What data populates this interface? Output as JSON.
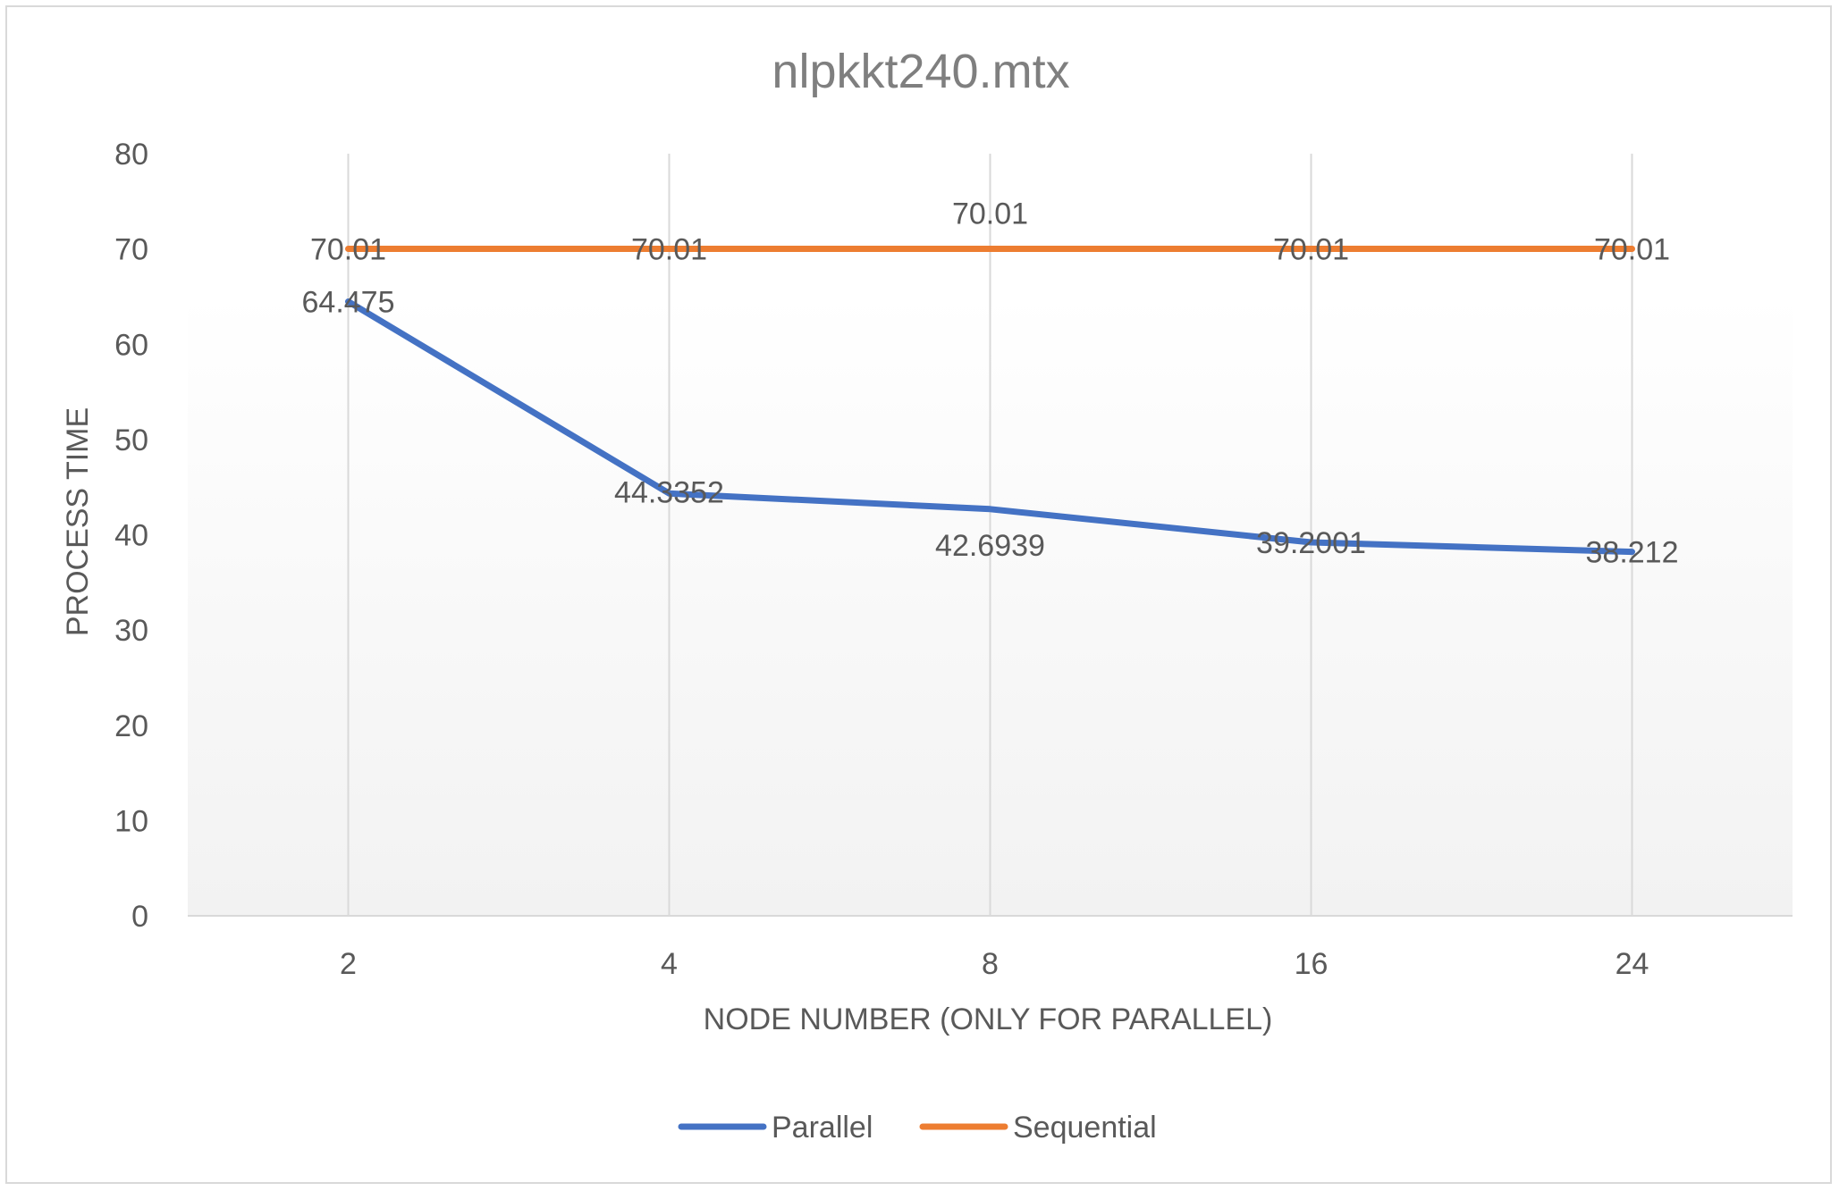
{
  "chart_data": {
    "type": "line",
    "title": "nlpkkt240.mtx",
    "xlabel": "NODE NUMBER (ONLY FOR PARALLEL)",
    "ylabel": "PROCESS TIME",
    "categories": [
      "2",
      "4",
      "8",
      "16",
      "24"
    ],
    "ylim": [
      0,
      80
    ],
    "yticks": [
      0,
      10,
      20,
      30,
      40,
      50,
      60,
      70,
      80
    ],
    "grid": "vertical",
    "legend_position": "bottom",
    "series": [
      {
        "name": "Parallel",
        "color": "#4472C4",
        "values": [
          64.475,
          44.3352,
          42.6939,
          39.2001,
          38.212
        ],
        "labels": [
          "64.475",
          "44.3352",
          "42.6939",
          "39.2001",
          "38.212"
        ]
      },
      {
        "name": "Sequential",
        "color": "#ED7D31",
        "values": [
          70.01,
          70.01,
          70.01,
          70.01,
          70.01
        ],
        "labels": [
          "70.01",
          "70.01",
          "70.01",
          "70.01",
          "70.01"
        ]
      }
    ]
  },
  "colors": {
    "axis_text": "#595959",
    "title_text": "#7f7f7f",
    "gridline": "#d9d9d9",
    "plot_gradient_top": "#ffffff",
    "plot_gradient_bottom": "#f2f2f2"
  }
}
